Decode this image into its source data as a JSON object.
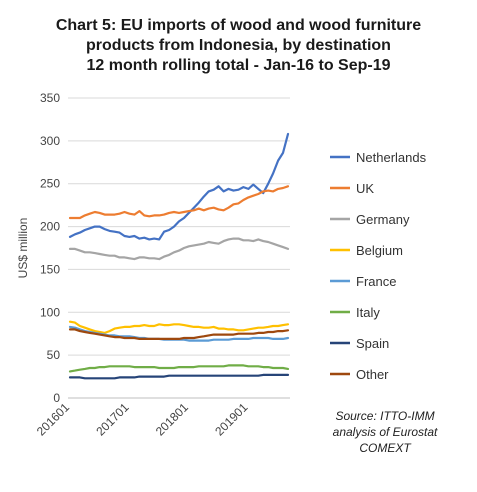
{
  "title_lines": [
    "Chart 5: EU imports of wood and wood furniture",
    "products from Indonesia, by destination",
    "12 month rolling total  - Jan-16 to Sep-19"
  ],
  "source_lines": [
    "Source: ITTO-IMM",
    "analysis of Eurostat",
    "COMEXT"
  ],
  "chart_data": {
    "type": "line",
    "title": "Chart 5: EU imports of wood and wood furniture products from Indonesia, by destination 12 month rolling total  - Jan-16 to Sep-19",
    "ylabel": "US$ million",
    "xlabel": "",
    "ylim": [
      0,
      350
    ],
    "yticks": [
      0,
      50,
      100,
      150,
      200,
      250,
      300,
      350
    ],
    "xtick_labels": [
      "201601",
      "201701",
      "201801",
      "201901"
    ],
    "xtick_indices": [
      0,
      12,
      24,
      36
    ],
    "n_points": 45,
    "grid": "horizontal",
    "legend": "right",
    "series": [
      {
        "name": "Netherlands",
        "color": "#4472C4",
        "values": [
          188,
          191,
          193,
          196,
          198,
          200,
          200,
          197,
          195,
          194,
          193,
          189,
          188,
          189,
          186,
          187,
          185,
          186,
          185,
          194,
          196,
          200,
          206,
          210,
          216,
          222,
          228,
          235,
          241,
          243,
          247,
          241,
          244,
          242,
          243,
          246,
          244,
          249,
          244,
          239,
          250,
          262,
          277,
          286,
          308
        ]
      },
      {
        "name": "UK",
        "color": "#ED7D31",
        "values": [
          210,
          210,
          210,
          213,
          215,
          217,
          216,
          214,
          214,
          214,
          215,
          217,
          215,
          214,
          218,
          213,
          212,
          213,
          213,
          214,
          216,
          217,
          216,
          217,
          218,
          219,
          221,
          219,
          221,
          222,
          220,
          219,
          222,
          226,
          227,
          231,
          234,
          236,
          238,
          241,
          242,
          241,
          244,
          245,
          247
        ]
      },
      {
        "name": "Germany",
        "color": "#A5A5A5",
        "values": [
          174,
          174,
          172,
          170,
          170,
          169,
          168,
          167,
          166,
          166,
          164,
          164,
          163,
          162,
          164,
          164,
          163,
          163,
          162,
          165,
          167,
          170,
          172,
          175,
          177,
          178,
          179,
          180,
          182,
          181,
          180,
          183,
          185,
          186,
          186,
          184,
          184,
          183,
          185,
          183,
          182,
          180,
          178,
          176,
          174
        ]
      },
      {
        "name": "Belgium",
        "color": "#FFC000",
        "values": [
          89,
          88,
          84,
          82,
          80,
          78,
          77,
          76,
          78,
          81,
          82,
          83,
          83,
          84,
          84,
          85,
          84,
          84,
          86,
          85,
          85,
          86,
          86,
          85,
          84,
          83,
          83,
          82,
          82,
          83,
          81,
          81,
          80,
          80,
          79,
          79,
          80,
          81,
          82,
          82,
          83,
          84,
          84,
          85,
          86
        ]
      },
      {
        "name": "France",
        "color": "#5B9BD5",
        "values": [
          83,
          82,
          80,
          78,
          77,
          76,
          75,
          74,
          73,
          73,
          72,
          72,
          72,
          71,
          70,
          70,
          69,
          69,
          69,
          68,
          68,
          68,
          68,
          68,
          67,
          67,
          67,
          67,
          67,
          68,
          68,
          68,
          68,
          69,
          69,
          69,
          69,
          70,
          70,
          70,
          70,
          69,
          69,
          69,
          70
        ]
      },
      {
        "name": "Italy",
        "color": "#70AD47",
        "values": [
          31,
          32,
          33,
          34,
          35,
          35,
          36,
          36,
          37,
          37,
          37,
          37,
          37,
          36,
          36,
          36,
          36,
          36,
          35,
          35,
          35,
          35,
          36,
          36,
          36,
          36,
          37,
          37,
          37,
          37,
          37,
          37,
          38,
          38,
          38,
          38,
          37,
          37,
          37,
          36,
          36,
          35,
          35,
          35,
          34
        ]
      },
      {
        "name": "Spain",
        "color": "#264478",
        "values": [
          24,
          24,
          24,
          23,
          23,
          23,
          23,
          23,
          23,
          23,
          24,
          24,
          24,
          24,
          25,
          25,
          25,
          25,
          25,
          25,
          26,
          26,
          26,
          26,
          26,
          26,
          26,
          26,
          26,
          26,
          26,
          26,
          26,
          26,
          26,
          26,
          26,
          26,
          26,
          27,
          27,
          27,
          27,
          27,
          27
        ]
      },
      {
        "name": "Other",
        "color": "#9E480E",
        "values": [
          80,
          80,
          78,
          77,
          76,
          75,
          74,
          73,
          72,
          71,
          71,
          70,
          70,
          70,
          69,
          69,
          69,
          69,
          69,
          69,
          69,
          69,
          69,
          70,
          70,
          70,
          71,
          72,
          73,
          74,
          74,
          74,
          74,
          74,
          75,
          75,
          75,
          75,
          76,
          76,
          77,
          77,
          78,
          78,
          79
        ]
      }
    ]
  }
}
